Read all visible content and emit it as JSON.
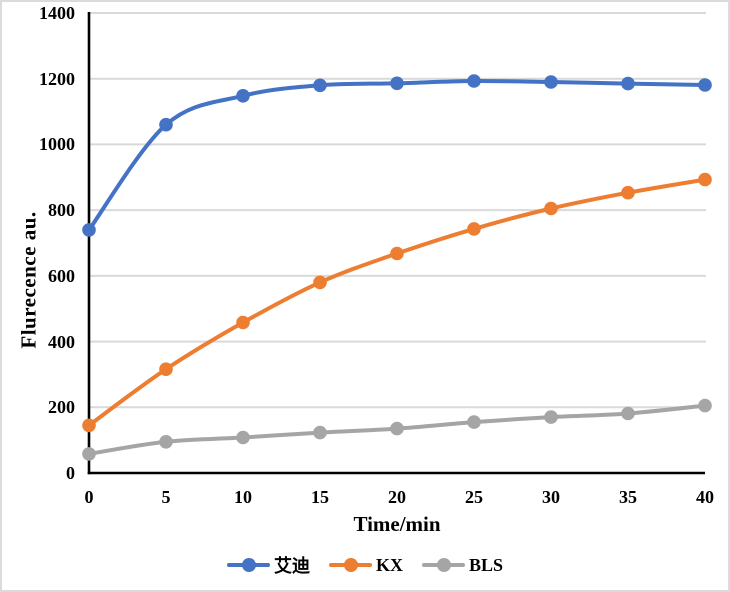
{
  "chart_data": {
    "type": "line",
    "x": [
      0,
      5,
      10,
      15,
      20,
      25,
      30,
      35,
      40
    ],
    "x_tick_labels": [
      "0",
      "5",
      "10",
      "15",
      "20",
      "25",
      "30",
      "35",
      "40"
    ],
    "y_tick_labels": [
      "0",
      "200",
      "400",
      "600",
      "800",
      "1000",
      "1200",
      "1400"
    ],
    "series": [
      {
        "name": "艾迪",
        "color": "#4472C4",
        "values": [
          740,
          1060,
          1148,
          1180,
          1186,
          1193,
          1190,
          1185,
          1181
        ]
      },
      {
        "name": "KX",
        "color": "#ED7D31",
        "values": [
          145,
          316,
          458,
          580,
          668,
          743,
          805,
          853,
          893
        ]
      },
      {
        "name": "BLS",
        "color": "#A5A5A5",
        "values": [
          58,
          95,
          108,
          123,
          135,
          155,
          170,
          181,
          205
        ]
      }
    ],
    "title": "",
    "xlabel": "Time/min",
    "ylabel": "Flurecence au.",
    "xlim": [
      0,
      40
    ],
    "ylim": [
      0,
      1400
    ],
    "ytick_step": 200,
    "grid": true,
    "smooth_lines": true,
    "marker": "circle",
    "legend_position": "bottom",
    "gridline_color": "#D9D9D9",
    "axis_color": "#000000",
    "background_color": "#FFFFFF",
    "border_color": "#DBDBDB"
  }
}
